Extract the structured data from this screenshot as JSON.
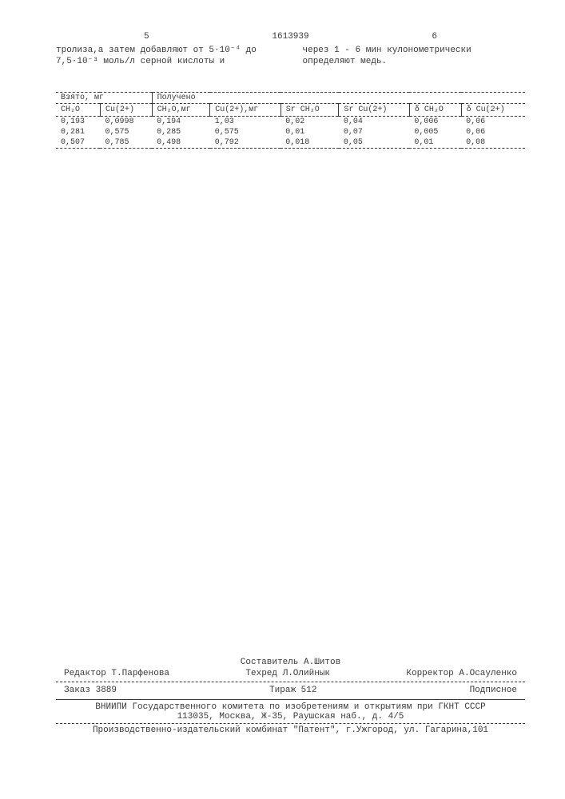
{
  "header": {
    "left_col_num": "5",
    "doc_number": "1613939",
    "right_col_num": "6",
    "left_text": "тролиза,а затем добавляют от 5·10⁻⁴ до 7,5·10⁻³ моль/л серной кислоты и",
    "right_text": "через 1 - 6 мин кулонометрически определяют медь."
  },
  "table": {
    "group_headers": {
      "taken": "Взято, мг",
      "obtained": "Получено"
    },
    "sub_headers": {
      "c1": "CH₂O",
      "c2": "Cu(2+)",
      "c3": "CH₂O,мг",
      "c4": "Cu(2+),мг",
      "c5": "Sr CH₂O",
      "c6": "Sr Cu(2+)",
      "c7": "δ CH₂O",
      "c8": "δ Cu(2+)"
    },
    "rows": [
      [
        "0,193",
        "0,0998",
        "0,194",
        "1,03",
        "0,02",
        "0,04",
        "0,006",
        "0,06"
      ],
      [
        "0,281",
        "0,575",
        "0,285",
        "0,575",
        "0,01",
        "0,07",
        "0,005",
        "0,06"
      ],
      [
        "0,507",
        "0,785",
        "0,498",
        "0,792",
        "0,018",
        "0,05",
        "0,01",
        "0,08"
      ]
    ]
  },
  "footer": {
    "compiler": "Составитель А.Шитов",
    "editor": "Редактор Т.Парфенова",
    "tech": "Техред Л.Олийнык",
    "corrector": "Корректор А.Осауленко",
    "order": "Заказ 3889",
    "tirazh": "Тираж 512",
    "subscription": "Подписное",
    "org": "ВНИИПИ Государственного комитета по изобретениям и открытиям при ГКНТ СССР",
    "address": "113035, Москва, Ж-35, Раушская наб., д. 4/5",
    "publisher": "Производственно-издательский комбинат \"Патент\", г.Ужгород, ул. Гагарина,101"
  }
}
